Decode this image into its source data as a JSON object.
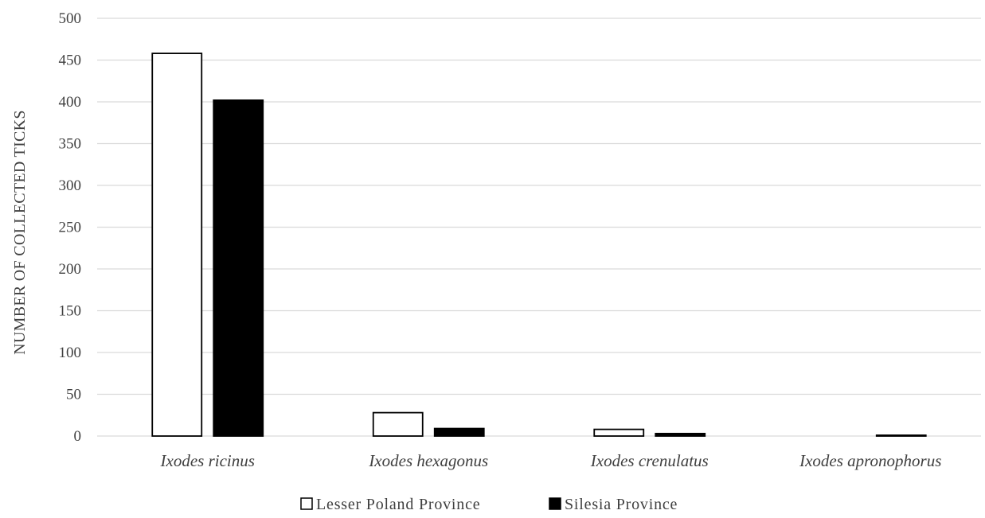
{
  "chart_data": {
    "type": "bar",
    "title": "",
    "xlabel": "",
    "ylabel": "NUMBER OF COLLECTED  TICKS",
    "ylim": [
      0,
      500
    ],
    "yticks": [
      0,
      50,
      100,
      150,
      200,
      250,
      300,
      350,
      400,
      450,
      500
    ],
    "grid": true,
    "legend_position": "bottom",
    "categories": [
      "Ixodes ricinus",
      "Ixodes hexagonus",
      "Ixodes crenulatus",
      "Ixodes apronophorus"
    ],
    "series": [
      {
        "name": "Lesser Poland Province",
        "fill": "#ffffff",
        "stroke": "#000000",
        "values": [
          458,
          28,
          8,
          0
        ]
      },
      {
        "name": "Silesia Province",
        "fill": "#000000",
        "stroke": "#000000",
        "values": [
          402,
          9,
          3,
          1
        ]
      }
    ]
  }
}
